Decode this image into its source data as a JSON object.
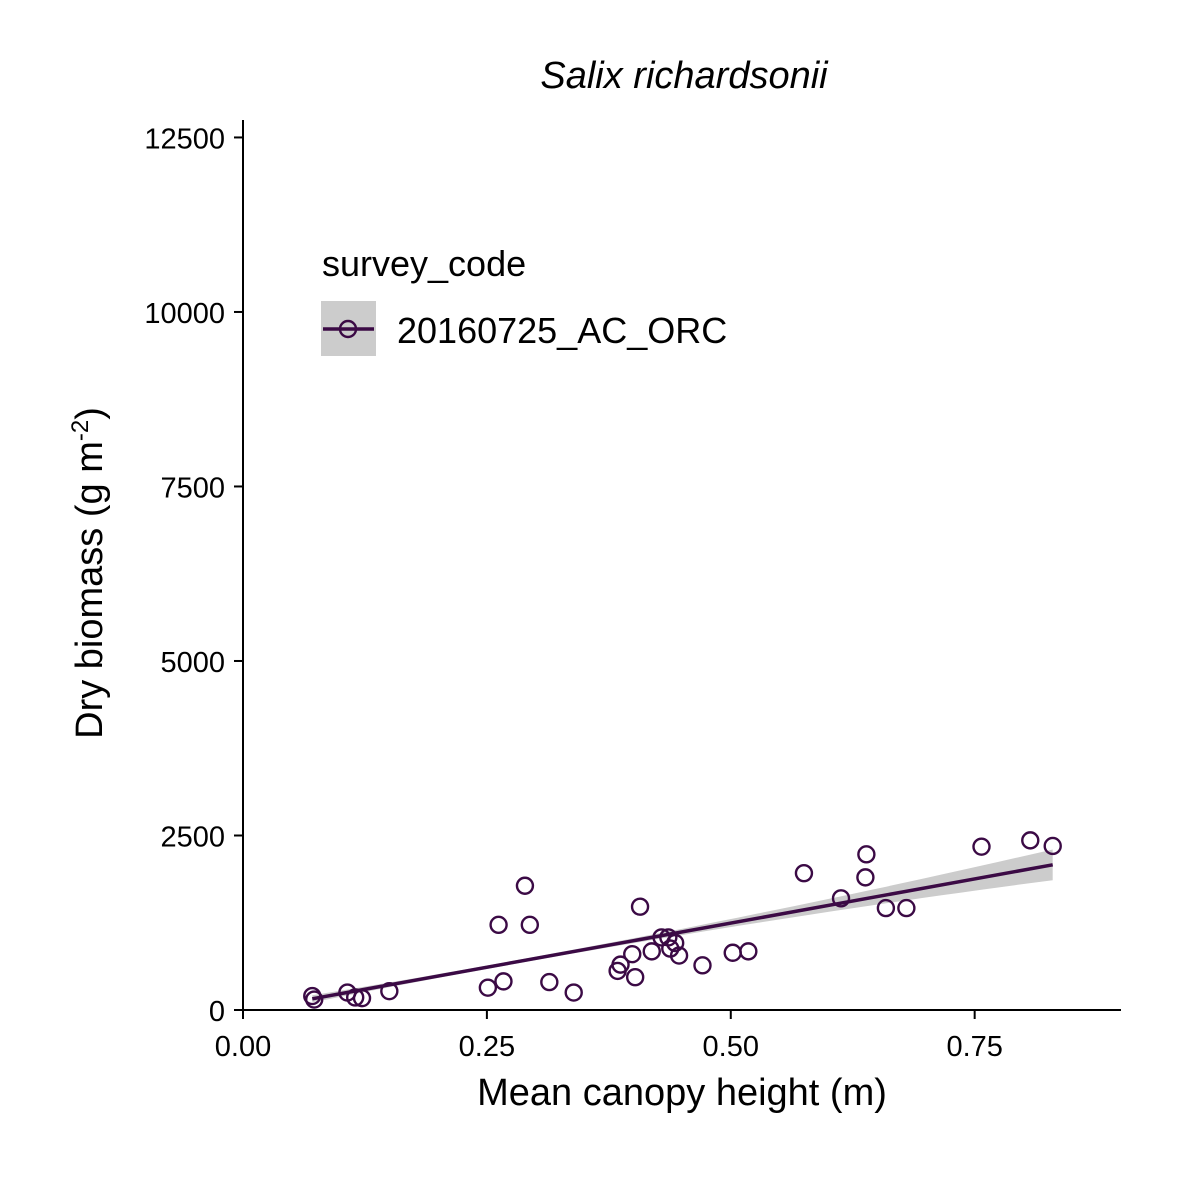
{
  "chart_data": {
    "type": "scatter",
    "title": "Salix richardsonii",
    "xlabel": "Mean canopy height (m)",
    "ylabel_main": "Dry biomass (g m",
    "ylabel_sup": "-2",
    "ylabel_end": ")",
    "xlim": [
      0,
      0.9
    ],
    "ylim": [
      0,
      12750
    ],
    "x_ticks": [
      0,
      0.25,
      0.5,
      0.75
    ],
    "x_tick_labels": [
      "0.00",
      "0.25",
      "0.50",
      "0.75"
    ],
    "y_ticks": [
      0,
      2500,
      5000,
      7500,
      10000,
      12500
    ],
    "y_tick_labels": [
      "0",
      "2500",
      "5000",
      "7500",
      "10000",
      "12500"
    ],
    "legend": {
      "title": "survey_code",
      "placement": "top-left",
      "entries": [
        "20160725_AC_ORC"
      ]
    },
    "colors": {
      "series": "#3b0a45",
      "ribbon": "#cccccc"
    },
    "series": [
      {
        "name": "20160725_AC_ORC",
        "points": [
          [
            0.071,
            200
          ],
          [
            0.073,
            150
          ],
          [
            0.107,
            250
          ],
          [
            0.115,
            180
          ],
          [
            0.122,
            170
          ],
          [
            0.15,
            270
          ],
          [
            0.251,
            320
          ],
          [
            0.262,
            1220
          ],
          [
            0.267,
            410
          ],
          [
            0.289,
            1780
          ],
          [
            0.294,
            1220
          ],
          [
            0.314,
            400
          ],
          [
            0.339,
            250
          ],
          [
            0.384,
            560
          ],
          [
            0.387,
            650
          ],
          [
            0.399,
            800
          ],
          [
            0.402,
            470
          ],
          [
            0.407,
            1480
          ],
          [
            0.419,
            840
          ],
          [
            0.429,
            1040
          ],
          [
            0.436,
            1040
          ],
          [
            0.438,
            880
          ],
          [
            0.443,
            960
          ],
          [
            0.447,
            780
          ],
          [
            0.471,
            640
          ],
          [
            0.502,
            820
          ],
          [
            0.518,
            840
          ],
          [
            0.575,
            1960
          ],
          [
            0.613,
            1600
          ],
          [
            0.638,
            1900
          ],
          [
            0.639,
            2230
          ],
          [
            0.659,
            1460
          ],
          [
            0.68,
            1460
          ],
          [
            0.757,
            2340
          ],
          [
            0.807,
            2430
          ],
          [
            0.83,
            2350
          ]
        ]
      }
    ],
    "fit": {
      "x_start": 0.071,
      "x_end": 0.83,
      "y_start": 160,
      "y_end": 2080,
      "se_start": 50,
      "se_mid": 45,
      "se_end": 220
    }
  }
}
